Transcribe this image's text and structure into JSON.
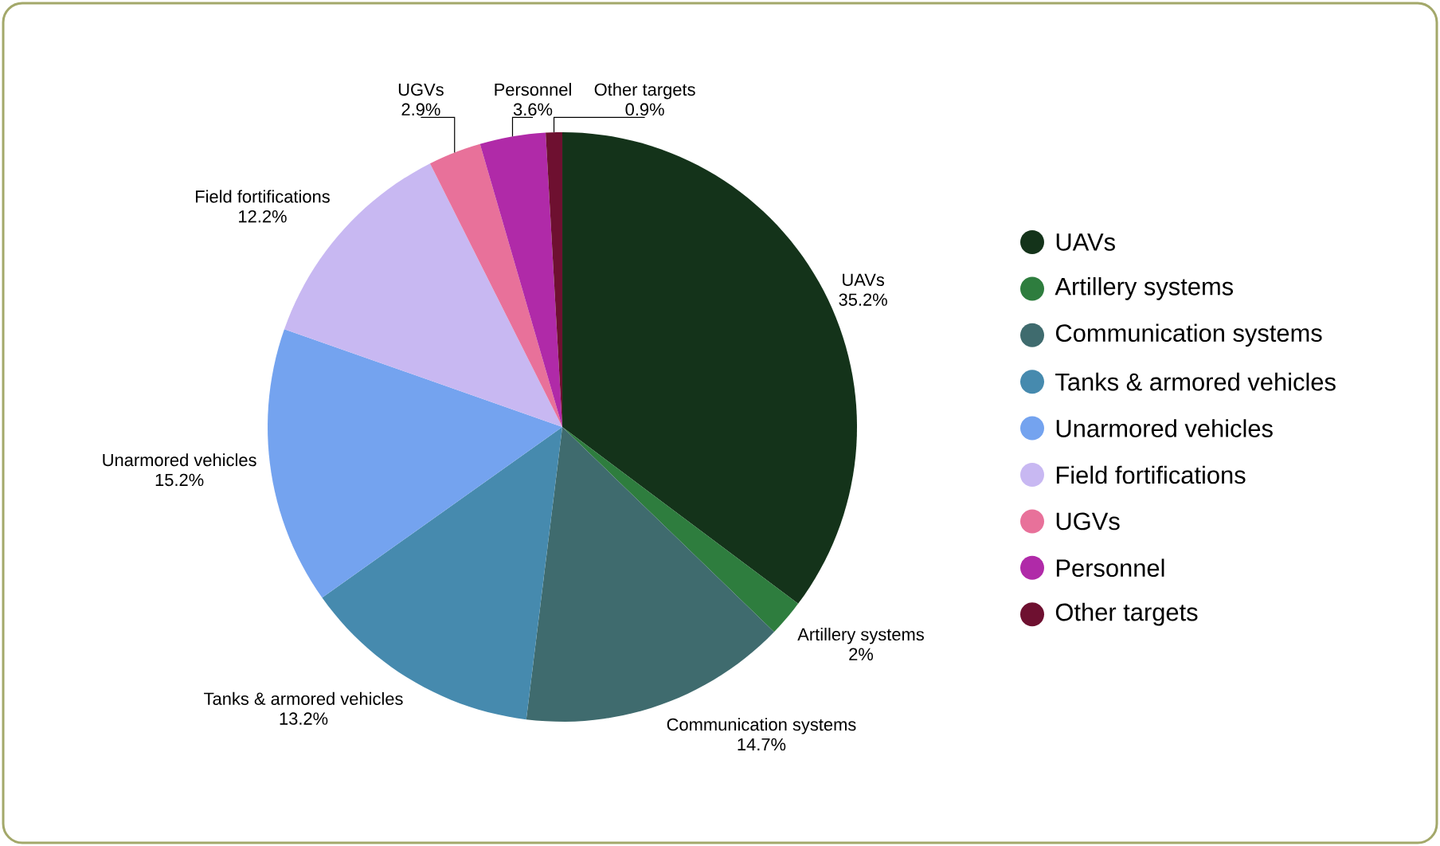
{
  "chart_data": {
    "type": "pie",
    "categories": [
      "UAVs",
      "Artillery systems",
      "Communication systems",
      "Tanks & armored vehicles",
      "Unarmored vehicles",
      "Field fortifications",
      "UGVs",
      "Personnel",
      "Other targets"
    ],
    "values": [
      35.2,
      2,
      14.7,
      13.2,
      15.2,
      12.2,
      2.9,
      3.6,
      0.9
    ],
    "value_labels": [
      "35.2%",
      "2%",
      "14.7%",
      "13.2%",
      "15.2%",
      "12.2%",
      "2.9%",
      "3.6%",
      "0.9%"
    ],
    "colors": [
      "#14331a",
      "#2e7d3e",
      "#3f6b6e",
      "#468aae",
      "#74a3ef",
      "#c8b8f2",
      "#e8719a",
      "#b02aa8",
      "#6e1030"
    ],
    "legend": "right"
  }
}
